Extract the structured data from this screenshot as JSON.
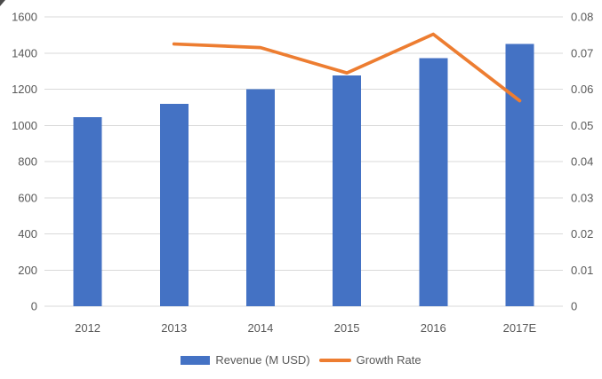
{
  "chart_data": {
    "type": "combo",
    "title": "",
    "categories": [
      "2012",
      "2013",
      "2014",
      "2015",
      "2016",
      "2017E"
    ],
    "series": [
      {
        "name": "Revenue (M USD)",
        "type": "bar",
        "axis": "left",
        "color": "#4472C4",
        "values": [
          1045,
          1120,
          1200,
          1277,
          1373,
          1450
        ]
      },
      {
        "name": "Growth Rate",
        "type": "line",
        "axis": "right",
        "color": "#ED7D31",
        "values": [
          null,
          0.0725,
          0.0715,
          0.0645,
          0.0752,
          0.0568
        ]
      }
    ],
    "left_axis": {
      "min": 0,
      "max": 1600,
      "step": 200,
      "tick_labels": [
        "1600",
        "1400",
        "1200",
        "1000",
        "800",
        "600",
        "400",
        "200",
        "0"
      ]
    },
    "right_axis": {
      "min": 0,
      "max": 0.08,
      "step": 0.01,
      "tick_labels": [
        "0.08",
        "0.07",
        "0.06",
        "0.05",
        "0.04",
        "0.03",
        "0.02",
        "0.01",
        "0"
      ]
    },
    "grid": true,
    "legend_position": "bottom",
    "colors": {
      "grid": "#D9D9D9",
      "tick_text": "#595959",
      "background": "#FFFFFF"
    }
  }
}
